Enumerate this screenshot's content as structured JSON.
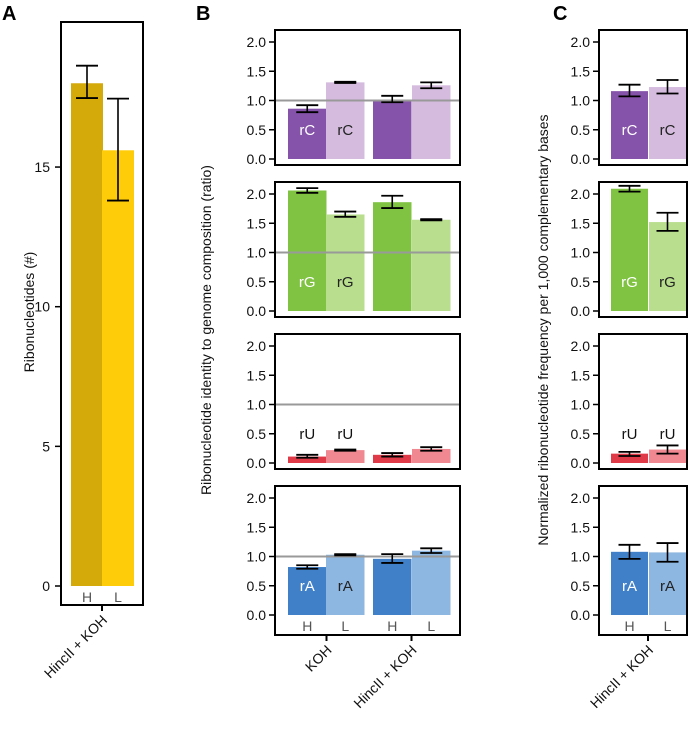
{
  "chart_data": [
    {
      "panel": "A",
      "type": "bar",
      "ylabel": "Ribonucleotides (#)",
      "yticks": [
        0,
        5,
        10,
        15
      ],
      "categories": [
        "HincII + KOH"
      ],
      "strand_labels": [
        "H",
        "L"
      ],
      "colors": {
        "H": "#D4A90A",
        "L": "#FFCC0A"
      },
      "bars": [
        {
          "group": "HincII + KOH",
          "strand": "H",
          "value": 18.0,
          "err": [
            17.47,
            18.63
          ]
        },
        {
          "group": "HincII + KOH",
          "strand": "L",
          "value": 15.6,
          "err": [
            13.8,
            17.45
          ]
        }
      ]
    },
    {
      "panel": "B",
      "type": "bar",
      "ylabel": "Ribonucleotide identity to genome composition (ratio)",
      "yticks": [
        "0.0",
        "0.5",
        "1.0",
        "1.5",
        "2.0"
      ],
      "reference_line": 1.0,
      "categories": [
        "KOH",
        "HincII + KOH"
      ],
      "strand_labels": [
        "H",
        "L"
      ],
      "rows": [
        {
          "nucleotide": "rC",
          "colors": {
            "H": "#8553A9",
            "L": "#D5BCDF"
          },
          "bars": [
            {
              "group": "KOH",
              "strand": "H",
              "value": 0.86,
              "err": [
                0.8,
                0.92
              ]
            },
            {
              "group": "KOH",
              "strand": "L",
              "value": 1.31,
              "err": [
                1.3,
                1.32
              ]
            },
            {
              "group": "HincII + KOH",
              "strand": "H",
              "value": 1.0,
              "err": [
                0.97,
                1.08
              ]
            },
            {
              "group": "HincII + KOH",
              "strand": "L",
              "value": 1.26,
              "err": [
                1.21,
                1.31
              ]
            }
          ]
        },
        {
          "nucleotide": "rG",
          "colors": {
            "H": "#80C342",
            "L": "#B8DE8E"
          },
          "bars": [
            {
              "group": "KOH",
              "strand": "H",
              "value": 2.06,
              "err": [
                2.02,
                2.1
              ]
            },
            {
              "group": "KOH",
              "strand": "L",
              "value": 1.65,
              "err": [
                1.61,
                1.7
              ]
            },
            {
              "group": "HincII + KOH",
              "strand": "H",
              "value": 1.86,
              "err": [
                1.76,
                1.97
              ]
            },
            {
              "group": "HincII + KOH",
              "strand": "L",
              "value": 1.56,
              "err": [
                1.55,
                1.57
              ]
            }
          ]
        },
        {
          "nucleotide": "rU",
          "colors": {
            "H": "#E03A48",
            "L": "#F08892"
          },
          "bars": [
            {
              "group": "KOH",
              "strand": "H",
              "value": 0.11,
              "err": [
                0.09,
                0.14
              ]
            },
            {
              "group": "KOH",
              "strand": "L",
              "value": 0.22,
              "err": [
                0.21,
                0.23
              ]
            },
            {
              "group": "HincII + KOH",
              "strand": "H",
              "value": 0.14,
              "err": [
                0.11,
                0.17
              ]
            },
            {
              "group": "HincII + KOH",
              "strand": "L",
              "value": 0.24,
              "err": [
                0.21,
                0.27
              ]
            }
          ]
        },
        {
          "nucleotide": "rA",
          "colors": {
            "H": "#4080C8",
            "L": "#8DB6E0"
          },
          "bars": [
            {
              "group": "KOH",
              "strand": "H",
              "value": 0.82,
              "err": [
                0.79,
                0.85
              ]
            },
            {
              "group": "KOH",
              "strand": "L",
              "value": 1.03,
              "err": [
                1.02,
                1.04
              ]
            },
            {
              "group": "HincII + KOH",
              "strand": "H",
              "value": 0.96,
              "err": [
                0.89,
                1.04
              ]
            },
            {
              "group": "HincII + KOH",
              "strand": "L",
              "value": 1.1,
              "err": [
                1.06,
                1.14
              ]
            }
          ]
        }
      ]
    },
    {
      "panel": "C",
      "type": "bar",
      "ylabel": "Normalized ribonucleotide frequency per 1,000 complementary bases",
      "yticks": [
        "0.0",
        "0.5",
        "1.0",
        "1.5",
        "2.0"
      ],
      "categories": [
        "HincII + KOH"
      ],
      "strand_labels": [
        "H",
        "L"
      ],
      "rows": [
        {
          "nucleotide": "rC",
          "colors": {
            "H": "#8553A9",
            "L": "#D5BCDF"
          },
          "bars": [
            {
              "group": "HincII + KOH",
              "strand": "H",
              "value": 1.16,
              "err": [
                1.07,
                1.27
              ]
            },
            {
              "group": "HincII + KOH",
              "strand": "L",
              "value": 1.23,
              "err": [
                1.12,
                1.35
              ]
            }
          ]
        },
        {
          "nucleotide": "rG",
          "colors": {
            "H": "#80C342",
            "L": "#B8DE8E"
          },
          "bars": [
            {
              "group": "HincII + KOH",
              "strand": "H",
              "value": 2.09,
              "err": [
                2.04,
                2.14
              ]
            },
            {
              "group": "HincII + KOH",
              "strand": "L",
              "value": 1.52,
              "err": [
                1.37,
                1.68
              ]
            }
          ]
        },
        {
          "nucleotide": "rU",
          "colors": {
            "H": "#E03A48",
            "L": "#F08892"
          },
          "bars": [
            {
              "group": "HincII + KOH",
              "strand": "H",
              "value": 0.16,
              "err": [
                0.12,
                0.19
              ]
            },
            {
              "group": "HincII + KOH",
              "strand": "L",
              "value": 0.23,
              "err": [
                0.16,
                0.3
              ]
            }
          ]
        },
        {
          "nucleotide": "rA",
          "colors": {
            "H": "#4080C8",
            "L": "#8DB6E0"
          },
          "bars": [
            {
              "group": "HincII + KOH",
              "strand": "H",
              "value": 1.08,
              "err": [
                0.96,
                1.2
              ]
            },
            {
              "group": "HincII + KOH",
              "strand": "L",
              "value": 1.07,
              "err": [
                0.91,
                1.23
              ]
            }
          ]
        }
      ]
    }
  ],
  "panel_letters": [
    "A",
    "B",
    "C"
  ]
}
